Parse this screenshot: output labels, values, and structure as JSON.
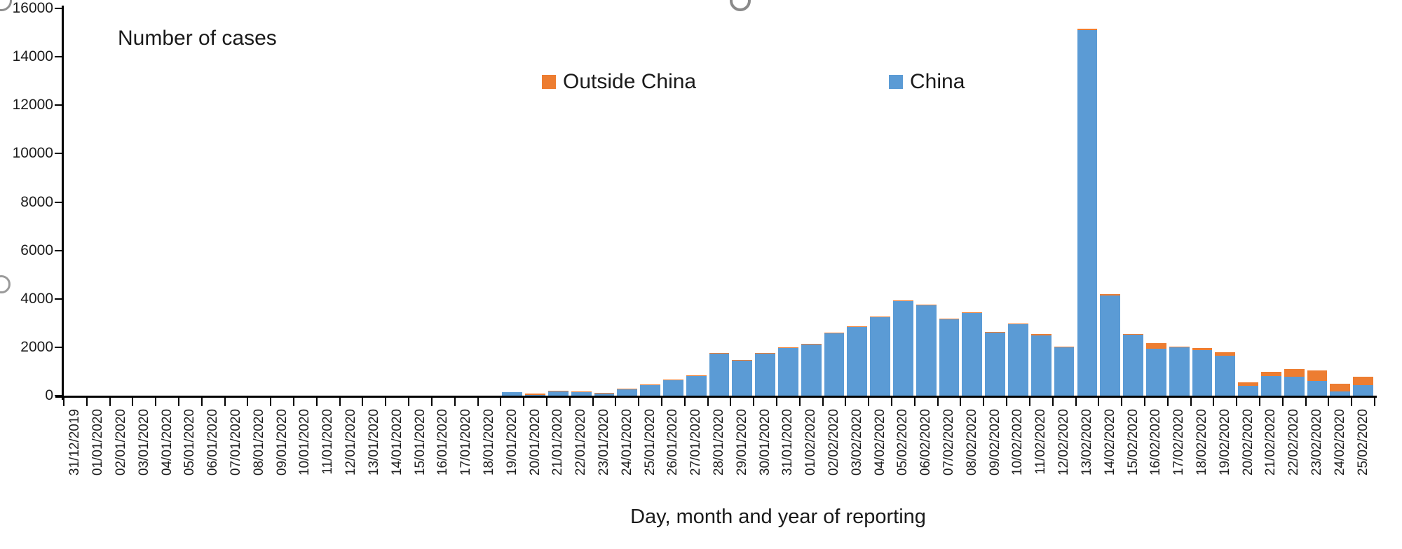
{
  "title": "Number of cases",
  "x_axis_title": "Day, month and year of reporting",
  "legend": {
    "items": [
      {
        "label": "Outside China",
        "color": "#ED7D31"
      },
      {
        "label": "China",
        "color": "#5B9BD5"
      }
    ]
  },
  "colors": {
    "china_bar": "#5B9BD5",
    "outside_china_bar": "#ED7D31",
    "axis": "#000000",
    "text": "#1a1a1a",
    "watermark_gray": "#8f8f8f"
  },
  "chart_data": {
    "type": "bar",
    "stacked": true,
    "title": "Number of cases",
    "xlabel": "Day, month and year of reporting",
    "ylabel": "Number of cases",
    "ylim": [
      0,
      16000
    ],
    "ytick_step": 2000,
    "grid": false,
    "legend_position": "top-center",
    "categories": [
      "31/12/2019",
      "01/01/2020",
      "02/01/2020",
      "03/01/2020",
      "04/01/2020",
      "05/01/2020",
      "06/01/2020",
      "07/01/2020",
      "08/01/2020",
      "09/01/2020",
      "10/01/2020",
      "11/01/2020",
      "12/01/2020",
      "13/01/2020",
      "14/01/2020",
      "15/01/2020",
      "16/01/2020",
      "17/01/2020",
      "18/01/2020",
      "19/01/2020",
      "20/01/2020",
      "21/01/2020",
      "22/01/2020",
      "23/01/2020",
      "24/01/2020",
      "25/01/2020",
      "26/01/2020",
      "27/01/2020",
      "28/01/2020",
      "29/01/2020",
      "30/01/2020",
      "31/01/2020",
      "01/02/2020",
      "02/02/2020",
      "03/02/2020",
      "04/02/2020",
      "05/02/2020",
      "06/02/2020",
      "07/02/2020",
      "08/02/2020",
      "09/02/2020",
      "10/02/2020",
      "11/02/2020",
      "12/02/2020",
      "13/02/2020",
      "14/02/2020",
      "15/02/2020",
      "16/02/2020",
      "17/02/2020",
      "18/02/2020",
      "19/02/2020",
      "20/02/2020",
      "21/02/2020",
      "22/02/2020",
      "23/02/2020",
      "24/02/2020",
      "25/02/2020"
    ],
    "series": [
      {
        "name": "Outside China",
        "color": "#ED7D31",
        "values": [
          0,
          0,
          0,
          0,
          0,
          0,
          0,
          0,
          0,
          0,
          0,
          0,
          0,
          0,
          0,
          0,
          0,
          0,
          0,
          0,
          55,
          10,
          10,
          10,
          30,
          20,
          25,
          25,
          30,
          25,
          30,
          30,
          30,
          30,
          30,
          30,
          30,
          40,
          40,
          40,
          30,
          40,
          60,
          40,
          60,
          50,
          40,
          230,
          40,
          80,
          150,
          150,
          170,
          320,
          420,
          320,
          360
        ]
      },
      {
        "name": "China",
        "color": "#5B9BD5",
        "values": [
          0,
          0,
          0,
          0,
          0,
          0,
          0,
          0,
          0,
          0,
          0,
          0,
          0,
          0,
          0,
          0,
          0,
          0,
          0,
          140,
          15,
          160,
          140,
          100,
          260,
          420,
          650,
          800,
          1750,
          1440,
          1750,
          1960,
          2100,
          2570,
          2830,
          3240,
          3900,
          3730,
          3160,
          3410,
          2600,
          2950,
          2480,
          2000,
          15100,
          4150,
          2510,
          1950,
          2010,
          1880,
          1650,
          400,
          800,
          790,
          600,
          180,
          430
        ]
      }
    ]
  }
}
